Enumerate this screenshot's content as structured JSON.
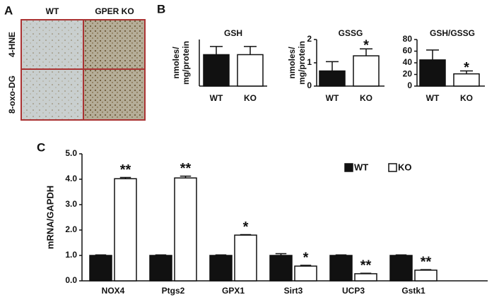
{
  "panel_labels": [
    "A",
    "B",
    "C"
  ],
  "panel_a": {
    "columns": [
      "WT",
      "GPER KO"
    ],
    "rows": [
      "4-HNE",
      "8-oxo-DG"
    ]
  },
  "chart_data": [
    {
      "type": "bar",
      "title": "GSH",
      "ylabel": [
        "nmoles/",
        "mg/protein"
      ],
      "categories": [
        "WT",
        "KO"
      ],
      "values": [
        27,
        27
      ],
      "errors": [
        7,
        7
      ],
      "colors": [
        "#111111",
        "#ffffff"
      ],
      "annotations": [
        null,
        null
      ],
      "ylim": [
        0,
        40
      ]
    },
    {
      "type": "bar",
      "title": "GSSG",
      "ylabel": [
        "nmoles/",
        "mg/protein"
      ],
      "categories": [
        "WT",
        "KO"
      ],
      "values": [
        0.65,
        1.3
      ],
      "errors": [
        0.4,
        0.3
      ],
      "colors": [
        "#111111",
        "#ffffff"
      ],
      "annotations": [
        null,
        "*"
      ],
      "ylim": [
        0,
        2
      ],
      "yticks": [
        0,
        1,
        2
      ]
    },
    {
      "type": "bar",
      "title": "GSH/GSSG",
      "categories": [
        "WT",
        "KO"
      ],
      "values": [
        45,
        21
      ],
      "errors": [
        17,
        5
      ],
      "colors": [
        "#111111",
        "#ffffff"
      ],
      "annotations": [
        null,
        "*"
      ],
      "ylim": [
        0,
        80
      ],
      "yticks": [
        0,
        20,
        40,
        60,
        80
      ]
    },
    {
      "type": "grouped-bar",
      "ylabel": "mRNA/GAPDH",
      "categories": [
        "NOX4",
        "Ptgs2",
        "GPX1",
        "Sirt3",
        "UCP3",
        "Gstk1"
      ],
      "series": [
        {
          "name": "WT",
          "color": "#111111",
          "values": [
            1.0,
            1.0,
            1.0,
            1.0,
            1.0,
            1.0
          ],
          "errors": [
            0.02,
            0.02,
            0.02,
            0.07,
            0.02,
            0.02
          ],
          "annotations": [
            null,
            null,
            null,
            null,
            null,
            null
          ]
        },
        {
          "name": "KO",
          "color": "#ffffff",
          "values": [
            4.02,
            4.05,
            1.8,
            0.58,
            0.28,
            0.42
          ],
          "errors": [
            0.05,
            0.07,
            0.02,
            0.03,
            0.02,
            0.02
          ],
          "annotations": [
            "**",
            "**",
            "*",
            "*",
            "**",
            "**"
          ]
        }
      ],
      "ylim": [
        0,
        5
      ],
      "yticks": [
        {
          "value": 0,
          "label": "0.0"
        },
        {
          "value": 1,
          "label": "1.0"
        },
        {
          "value": 2,
          "label": "2.0"
        },
        {
          "value": 3,
          "label": "3.0"
        },
        {
          "value": 4,
          "label": "4.0"
        },
        {
          "value": 5,
          "label": "5.0"
        }
      ],
      "legend": "top-right"
    }
  ]
}
